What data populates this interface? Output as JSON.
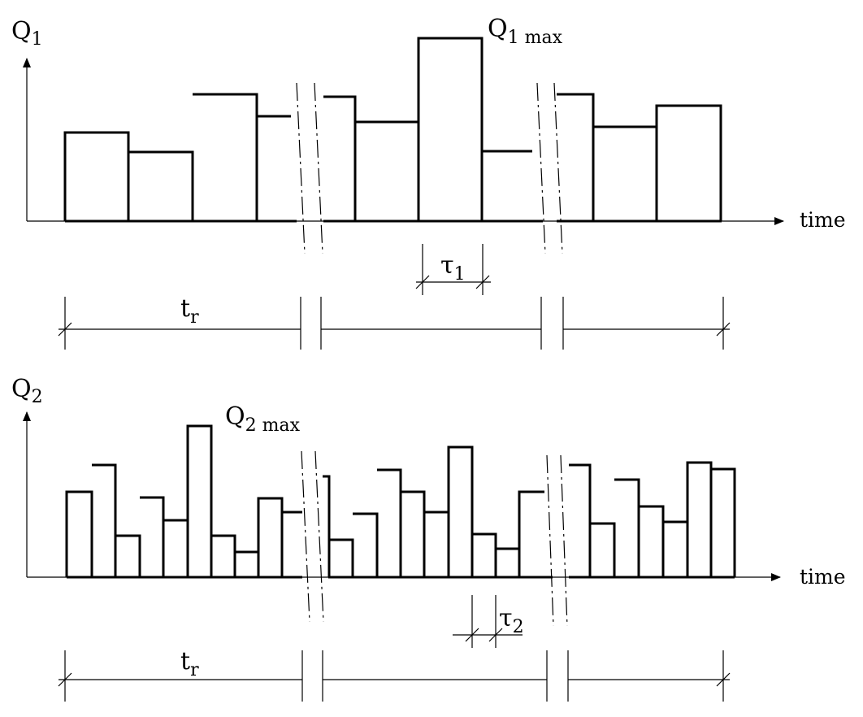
{
  "top": {
    "axis_label": {
      "main": "Q",
      "sub": "1"
    },
    "x_label": "time",
    "max_label": {
      "main": "Q",
      "sub": "1 max"
    },
    "tau_label": {
      "main": "τ",
      "sub": "1"
    },
    "tr_label": {
      "main": "t",
      "sub": "r"
    }
  },
  "bottom": {
    "axis_label": {
      "main": "Q",
      "sub": "2"
    },
    "x_label": "time",
    "max_label": {
      "main": "Q",
      "sub": "2 max"
    },
    "tau_label": {
      "main": "τ",
      "sub": "2"
    },
    "tr_label": {
      "main": "t",
      "sub": "r"
    }
  }
}
